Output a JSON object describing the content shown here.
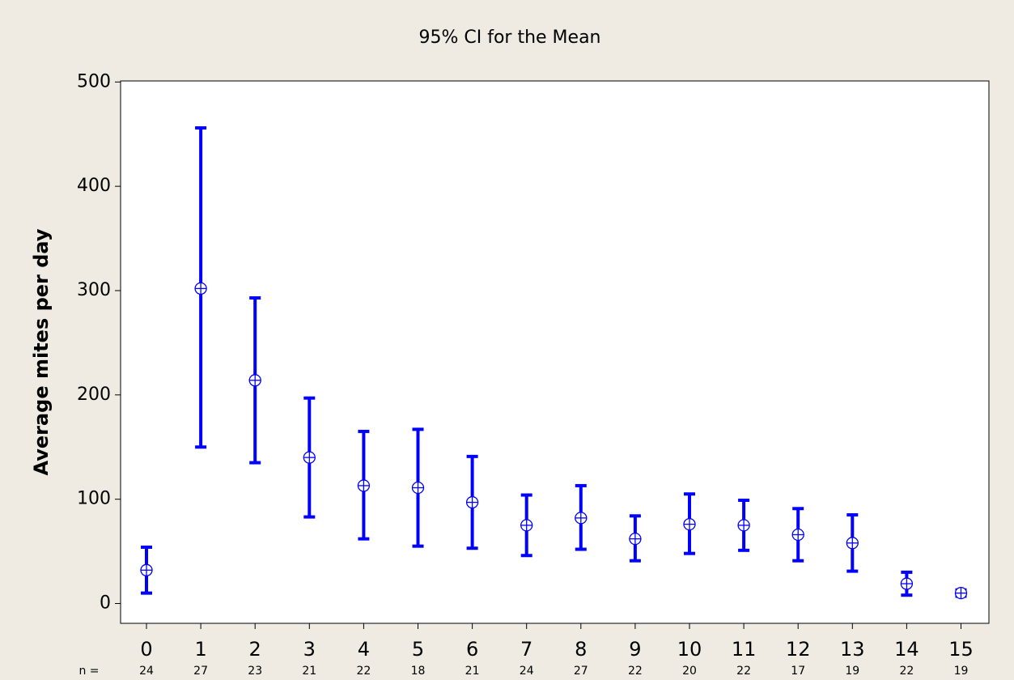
{
  "chart_data": {
    "type": "interval",
    "title": "95% CI for the Mean",
    "y_label": "Average mites per day",
    "categories": [
      "0",
      "1",
      "2",
      "3",
      "4",
      "5",
      "6",
      "7",
      "8",
      "9",
      "10",
      "11",
      "12",
      "13",
      "14",
      "15"
    ],
    "n_label": "n =",
    "n": [
      24,
      27,
      23,
      21,
      22,
      18,
      21,
      24,
      27,
      22,
      20,
      22,
      17,
      19,
      22,
      19
    ],
    "values": [
      32,
      302,
      214,
      140,
      113,
      111,
      97,
      75,
      82,
      62,
      76,
      75,
      66,
      58,
      19,
      10
    ],
    "lower": [
      10,
      150,
      135,
      83,
      62,
      55,
      53,
      46,
      52,
      41,
      48,
      51,
      41,
      31,
      8,
      7
    ],
    "upper": [
      54,
      456,
      293,
      197,
      165,
      167,
      141,
      104,
      113,
      84,
      105,
      99,
      91,
      85,
      30,
      13
    ],
    "color": "#0000ff",
    "ylim": [
      -19,
      501
    ],
    "yticks": [
      0,
      100,
      200,
      300,
      400,
      500
    ]
  }
}
